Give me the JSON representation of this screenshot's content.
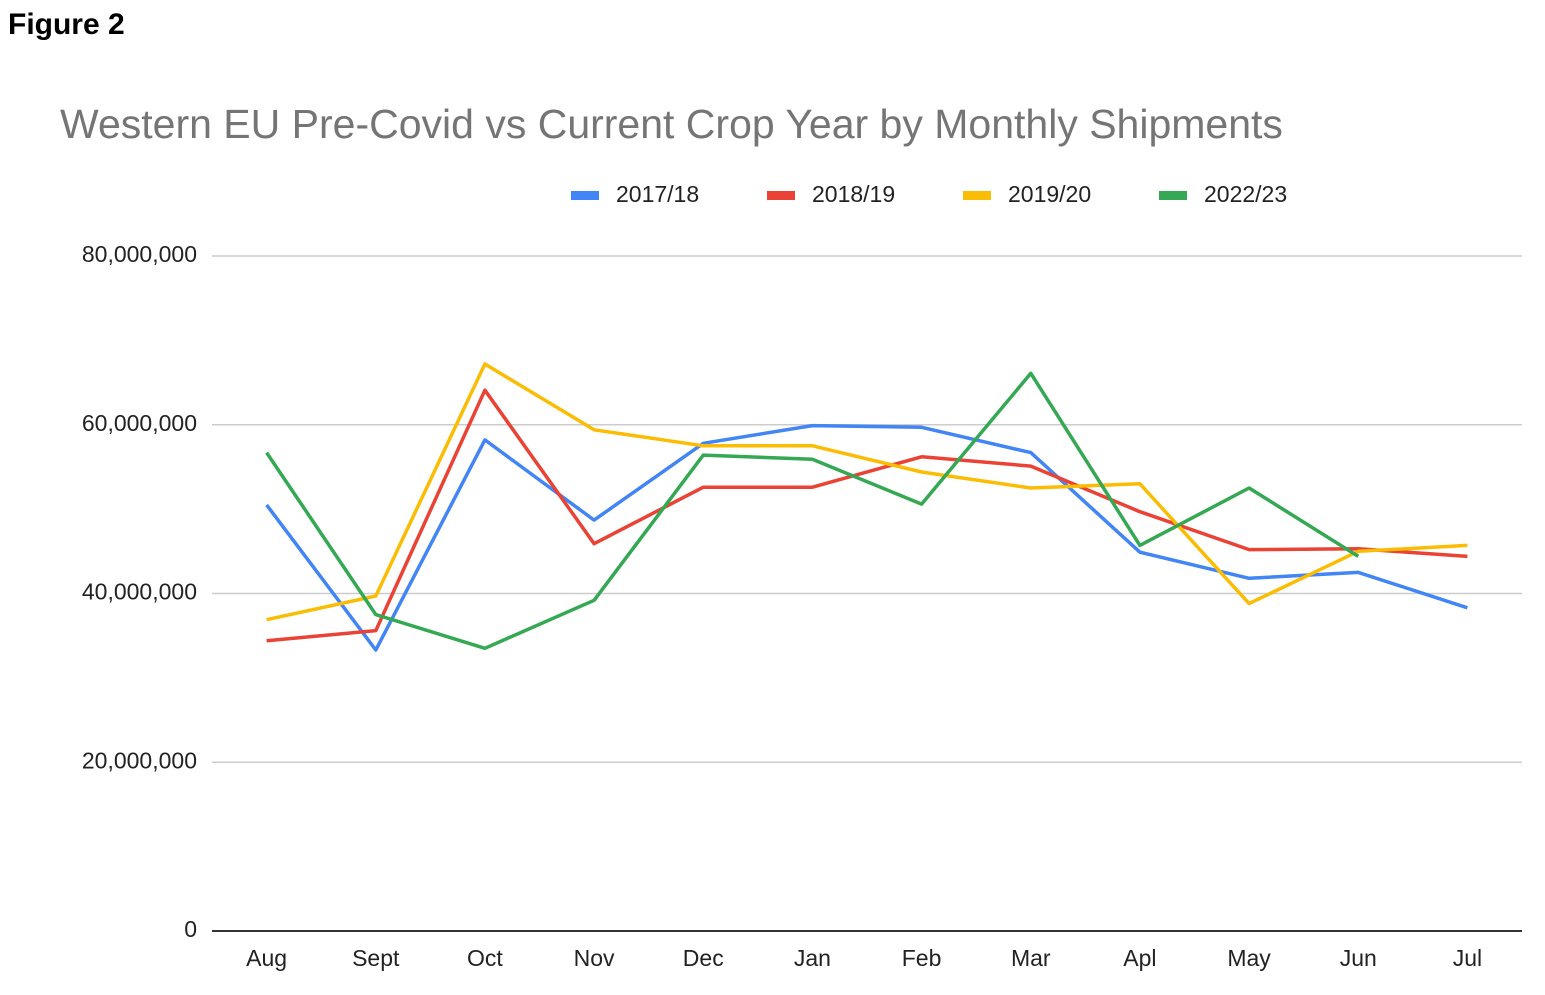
{
  "figure_label": "Figure 2",
  "chart_data": {
    "type": "line",
    "title": "Western EU Pre-Covid vs Current Crop Year by Monthly Shipments",
    "categories": [
      "Aug",
      "Sept",
      "Oct",
      "Nov",
      "Dec",
      "Jan",
      "Feb",
      "Mar",
      "Apl",
      "May",
      "Jun",
      "Jul"
    ],
    "series": [
      {
        "name": "2017/18",
        "color": "#4285f4",
        "values": [
          50500000,
          33300000,
          58200000,
          48700000,
          57800000,
          59900000,
          59700000,
          56700000,
          44900000,
          41800000,
          42500000,
          38300000
        ]
      },
      {
        "name": "2018/19",
        "color": "#ea4335",
        "values": [
          34400000,
          35600000,
          64100000,
          45900000,
          52600000,
          52600000,
          56200000,
          55100000,
          49700000,
          45200000,
          45300000,
          44400000
        ]
      },
      {
        "name": "2019/20",
        "color": "#fbbc04",
        "values": [
          36900000,
          39700000,
          67200000,
          59400000,
          57500000,
          57500000,
          54400000,
          52500000,
          53000000,
          38800000,
          45000000,
          45700000
        ]
      },
      {
        "name": "2022/23",
        "color": "#34a853",
        "values": [
          56700000,
          37500000,
          33500000,
          39200000,
          56400000,
          55900000,
          50600000,
          66100000,
          45700000,
          52500000,
          44400000,
          null
        ]
      }
    ],
    "ylim": [
      0,
      80000000
    ],
    "yticks": [
      0,
      {
        "value": 20000000,
        "label": "20,000,000"
      },
      {
        "value": 40000000,
        "label": "40,000,000"
      },
      {
        "value": 60000000,
        "label": "60,000,000"
      },
      {
        "value": 80000000,
        "label": "80,000,000"
      }
    ],
    "grid": true,
    "legend": "top"
  }
}
